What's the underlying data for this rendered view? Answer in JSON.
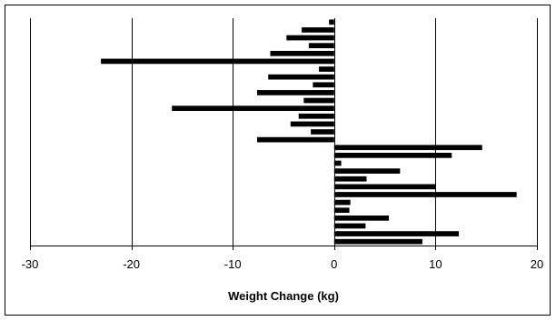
{
  "chart_data": {
    "type": "bar",
    "orientation": "horizontal",
    "xlabel": "Weight Change (kg)",
    "ylabel": "",
    "xlim": [
      -30,
      20
    ],
    "xticks": [
      -30,
      -20,
      -10,
      0,
      10,
      20
    ],
    "grid": "vertical",
    "legend": "none",
    "values": [
      -0.5,
      -3.2,
      -4.7,
      -2.5,
      -6.3,
      -23.0,
      -1.5,
      -6.5,
      -2.1,
      -7.6,
      -3.0,
      -16.0,
      -3.5,
      -4.3,
      -2.3,
      -7.6,
      14.6,
      11.6,
      0.7,
      6.5,
      3.2,
      10.0,
      18.0,
      1.6,
      1.5,
      5.4,
      3.1,
      12.3,
      8.7
    ],
    "bar_color": "#000000"
  }
}
